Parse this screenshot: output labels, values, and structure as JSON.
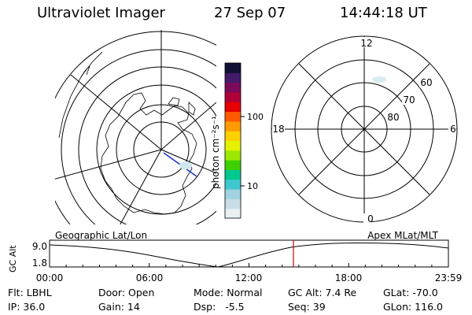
{
  "header": {
    "instrument": "Ultraviolet Imager",
    "date": "27 Sep 07",
    "time": "14:44:18 UT"
  },
  "colorbar": {
    "unit_label": "photon cm⁻²s⁻¹",
    "tick_100": "100",
    "tick_10": "10",
    "colors": [
      "#e9f0f4",
      "#c8dde8",
      "#9fd3df",
      "#3fc7cf",
      "#00c98f",
      "#3fd000",
      "#9ce800",
      "#e4f200",
      "#ffd000",
      "#ff9a00",
      "#ff5a00",
      "#e60000",
      "#b0003a",
      "#7c0a5a",
      "#441a6a",
      "#111133"
    ]
  },
  "right_plot": {
    "mlt_top": "12",
    "mlt_bottom": "0",
    "mlt_left": "18",
    "mlt_right": "6",
    "lat_60": "60",
    "lat_70": "70",
    "lat_80": "80"
  },
  "timeline": {
    "axis_label": "GC Alt",
    "y_top": "9.0",
    "y_bottom": "1.8",
    "left_title": "Geographic Lat/Lon",
    "right_title": "Apex MLat/MLT",
    "ticks": [
      "00:00",
      "06:00",
      "12:00",
      "18:00",
      "23:59"
    ],
    "marker_color": "#cc0000"
  },
  "footer": {
    "filter": "Flt: LBHL",
    "door": "Door: Open",
    "mode": "Mode: Normal",
    "gc_alt": "GC Alt: 7.4 Re",
    "glat": "GLat: -70.0",
    "ip": "IP: 36.0",
    "gain": "Gain: 14",
    "dsp": "Dsp:   -5.5",
    "seq": "Seq: 39",
    "glon": "GLon: 116.0"
  }
}
